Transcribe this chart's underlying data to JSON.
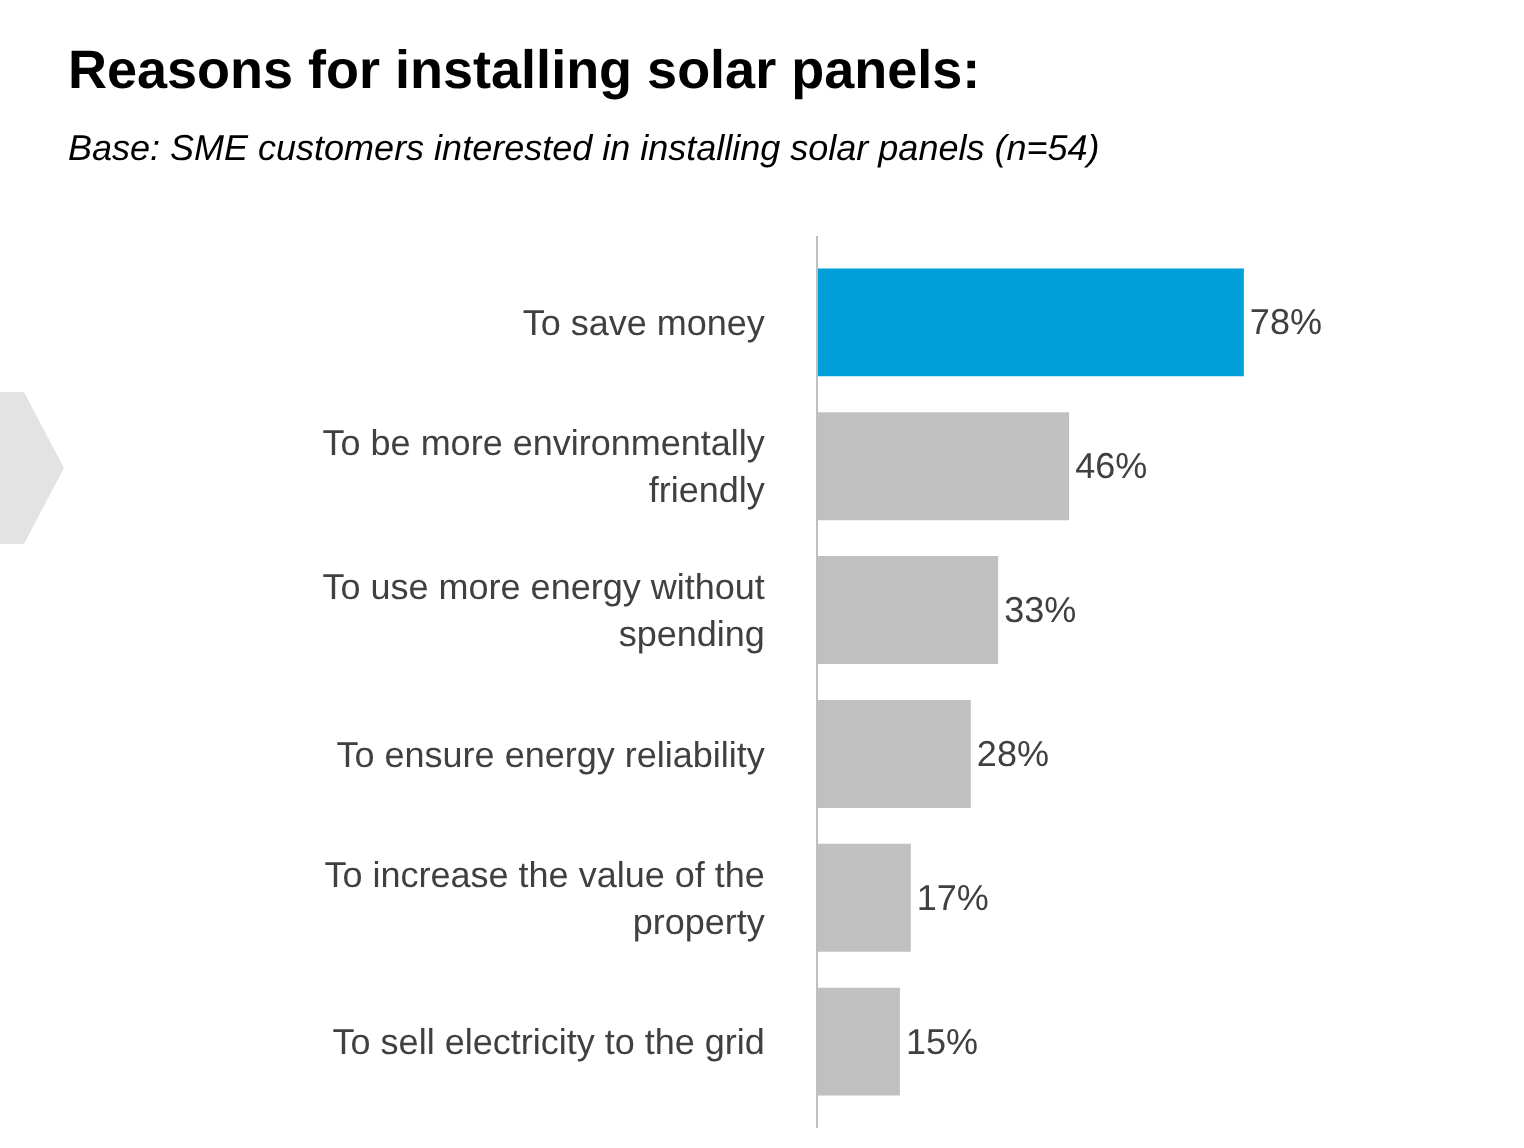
{
  "chart_data": {
    "type": "bar",
    "orientation": "horizontal",
    "title": "Reasons for installing solar panels:",
    "subtitle": "Base: SME customers interested in installing solar panels (n=54)",
    "categories": [
      "To save money",
      "To be more environmentally friendly",
      "To use more energy without spending",
      "To ensure energy reliability",
      "To increase the value of the property",
      "To sell electricity to the grid"
    ],
    "values": [
      78,
      46,
      33,
      28,
      17,
      15
    ],
    "colors": [
      "#009fda",
      "#c0c0c0",
      "#c0c0c0",
      "#c0c0c0",
      "#c0c0c0",
      "#c0c0c0"
    ],
    "value_labels": [
      "78%",
      "46%",
      "33%",
      "28%",
      "17%",
      "15%"
    ],
    "tick_labels": "y"
  }
}
